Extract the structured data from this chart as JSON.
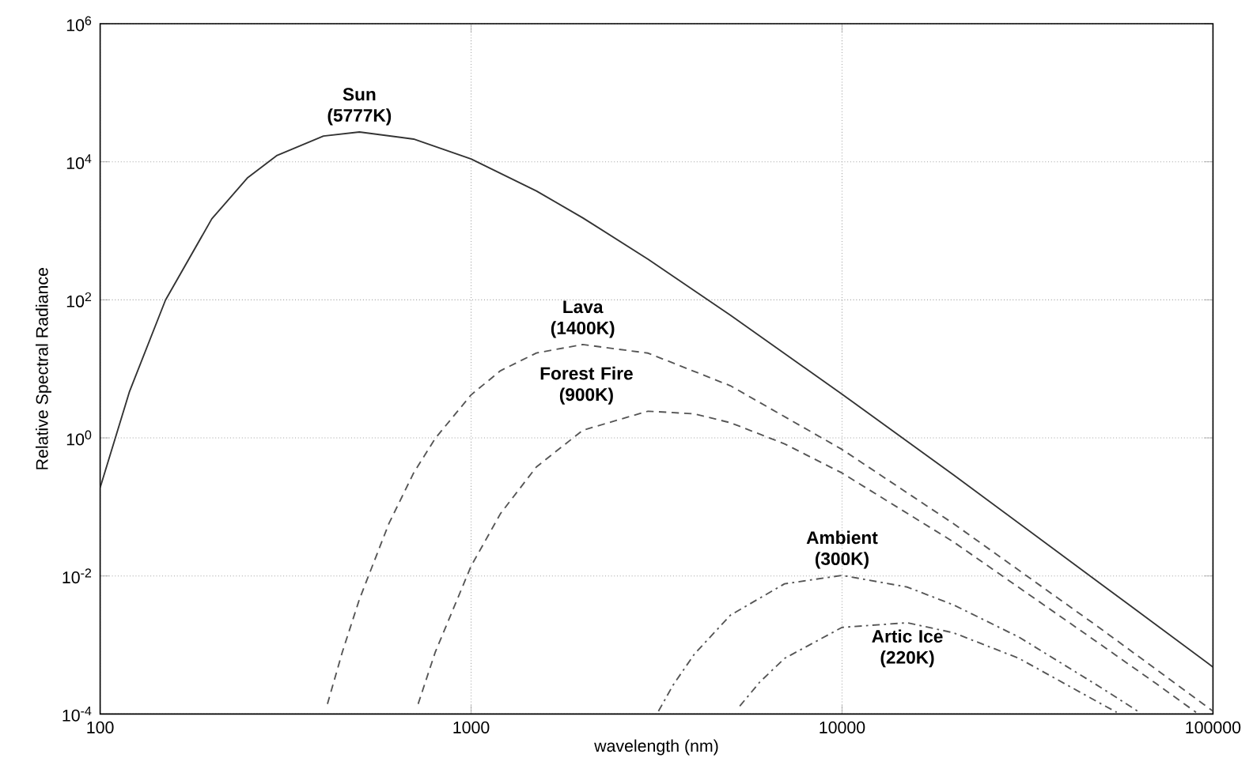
{
  "chart_data": {
    "type": "line",
    "xlabel": "wavelength (nm)",
    "ylabel": "Relative Spectral Radiance",
    "log": "xy",
    "grid": true,
    "xlim": [
      100,
      100000
    ],
    "ylim": [
      0.0001,
      1000000
    ],
    "xticks": [
      100,
      1000,
      10000,
      100000
    ],
    "yticks": [
      {
        "value": 0.0001,
        "label": "10$^{-4}$"
      },
      {
        "value": 0.01,
        "label": "10$^{-2}$"
      },
      {
        "value": 1,
        "label": "10$^{0}$"
      },
      {
        "value": 100,
        "label": "10$^{2}$"
      },
      {
        "value": 10000,
        "label": "10$^{4}$"
      },
      {
        "value": 1000000,
        "label": "10$^{6}$"
      }
    ],
    "series": [
      {
        "name": "Sun (5777K)",
        "color": "#333333",
        "line_style": "solid",
        "x": [
          100,
          120,
          150,
          200,
          250,
          300,
          400,
          500,
          700,
          1000,
          1500,
          2000,
          3000,
          5000,
          10000,
          20000,
          50000,
          100000
        ],
        "values": [
          0.19,
          4.7,
          99,
          1490,
          5900,
          12400,
          23600,
          27000,
          21300,
          11000,
          3780,
          1540,
          387,
          60,
          4.3,
          0.29,
          0.0076,
          0.00048
        ]
      },
      {
        "name": "Lava (1400K)",
        "color": "#555555",
        "line_style": "dashed",
        "x": [
          410,
          450,
          500,
          600,
          700,
          800,
          1000,
          1200,
          1500,
          2000,
          3000,
          5000,
          10000,
          20000,
          50000,
          100000
        ],
        "values": [
          0.00014,
          0.0008,
          0.0046,
          0.057,
          0.31,
          0.98,
          4.2,
          9.4,
          17,
          22.5,
          16.9,
          5.7,
          0.68,
          0.057,
          0.0017,
          0.00011
        ]
      },
      {
        "name": "Forest Fire (900K)",
        "color": "#555555",
        "line_style": "dashed",
        "x": [
          720,
          800,
          1000,
          1200,
          1500,
          2000,
          3000,
          4000,
          5000,
          7000,
          10000,
          20000,
          50000,
          70000,
          90000
        ],
        "values": [
          0.00014,
          0.00078,
          0.0139,
          0.08,
          0.38,
          1.29,
          2.44,
          2.23,
          1.66,
          0.82,
          0.31,
          0.031,
          0.001,
          0.00028,
          0.000106
        ]
      },
      {
        "name": "Ambient (300K)",
        "color": "#555555",
        "line_style": "dashdot",
        "x": [
          3200,
          3500,
          4000,
          5000,
          7000,
          10000,
          15000,
          20000,
          30000,
          50000,
          63000
        ],
        "values": [
          0.00011,
          0.00026,
          0.00074,
          0.0027,
          0.0077,
          0.0102,
          0.0069,
          0.0038,
          0.0013,
          0.00024,
          0.000108
        ]
      },
      {
        "name": "Artic Ice (220K)",
        "color": "#555555",
        "line_style": "dashdot",
        "x": [
          5300,
          6000,
          7000,
          10000,
          15000,
          20000,
          30000,
          50000,
          55000
        ],
        "values": [
          0.00013,
          0.00029,
          0.00064,
          0.0018,
          0.0021,
          0.0015,
          0.00064,
          0.00014,
          0.000106
        ]
      }
    ]
  }
}
